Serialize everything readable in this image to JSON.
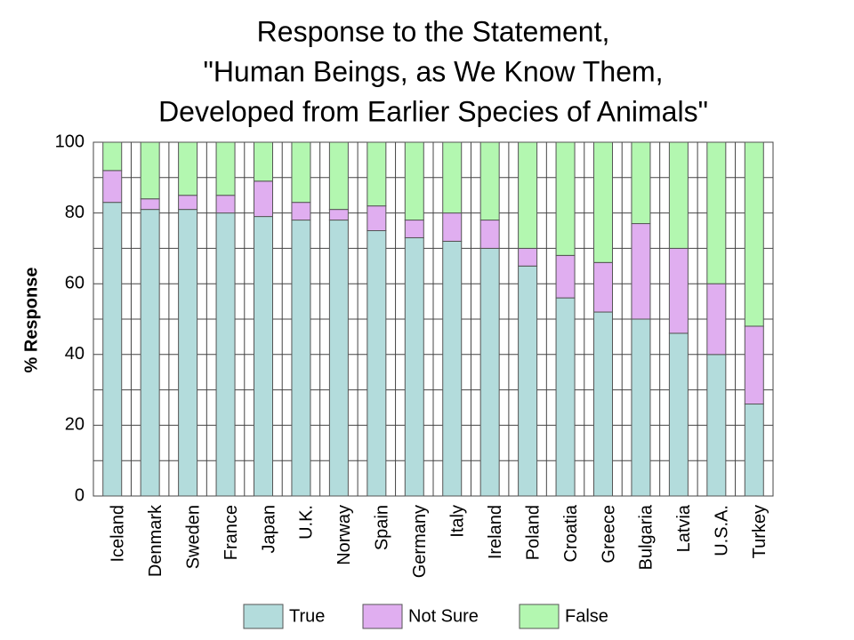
{
  "chart_data": {
    "type": "stacked_bar",
    "title": [
      "Response to the Statement,",
      "\"Human Beings, as We Know Them,",
      "Developed from Earlier Species of Animals\""
    ],
    "y_label": "% Response",
    "categories": [
      "Iceland",
      "Denmark",
      "Sweden",
      "France",
      "Japan",
      "U.K.",
      "Norway",
      "Spain",
      "Germany",
      "Italy",
      "Ireland",
      "Poland",
      "Croatia",
      "Greece",
      "Bulgaria",
      "Latvia",
      "U.S.A.",
      "Turkey"
    ],
    "series": [
      {
        "name": "True",
        "color": "#b3dcdc",
        "values": [
          83,
          81,
          81,
          80,
          79,
          78,
          78,
          75,
          73,
          72,
          70,
          65,
          56,
          52,
          50,
          46,
          40,
          26
        ]
      },
      {
        "name": "Not Sure",
        "color": "#e0aef0",
        "values": [
          9,
          3,
          4,
          5,
          10,
          5,
          3,
          7,
          5,
          8,
          8,
          5,
          12,
          14,
          27,
          24,
          20,
          22
        ]
      },
      {
        "name": "False",
        "color": "#b3f7b0",
        "values": [
          8,
          16,
          15,
          15,
          11,
          17,
          19,
          18,
          22,
          20,
          22,
          30,
          32,
          34,
          23,
          30,
          40,
          52
        ]
      }
    ],
    "ylim": [
      0,
      100
    ],
    "yticks": [
      0,
      20,
      40,
      60,
      80,
      100
    ],
    "yminor": [
      10,
      30,
      50,
      70,
      90
    ],
    "grid": true
  }
}
